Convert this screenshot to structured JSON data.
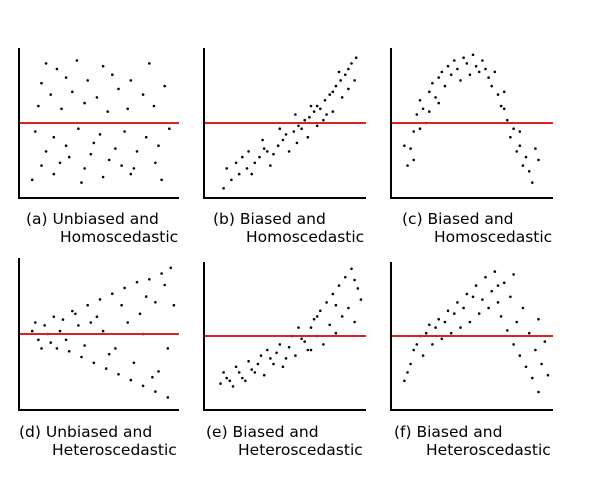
{
  "colors": {
    "background": "#ffffff",
    "axis": "#000000",
    "points": "#000000",
    "reference_line": "#e0201c"
  },
  "chart_data": [
    {
      "type": "scatter",
      "caption": [
        "(a) Unbiased and",
        "Homoscedastic"
      ],
      "grid": false,
      "xlim": [
        0,
        100
      ],
      "ylim": [
        0,
        100
      ],
      "reference_line_y": 50,
      "points": [
        [
          15,
          92
        ],
        [
          22,
          88
        ],
        [
          35,
          94
        ],
        [
          52,
          90
        ],
        [
          82,
          92
        ],
        [
          12,
          78
        ],
        [
          28,
          82
        ],
        [
          42,
          80
        ],
        [
          58,
          84
        ],
        [
          70,
          80
        ],
        [
          18,
          70
        ],
        [
          32,
          72
        ],
        [
          48,
          68
        ],
        [
          62,
          74
        ],
        [
          78,
          70
        ],
        [
          92,
          76
        ],
        [
          10,
          62
        ],
        [
          25,
          60
        ],
        [
          40,
          64
        ],
        [
          55,
          58
        ],
        [
          68,
          60
        ],
        [
          85,
          62
        ],
        [
          8,
          44
        ],
        [
          20,
          40
        ],
        [
          36,
          46
        ],
        [
          50,
          42
        ],
        [
          66,
          44
        ],
        [
          80,
          40
        ],
        [
          95,
          46
        ],
        [
          15,
          30
        ],
        [
          28,
          34
        ],
        [
          44,
          28
        ],
        [
          60,
          32
        ],
        [
          74,
          30
        ],
        [
          88,
          34
        ],
        [
          12,
          20
        ],
        [
          24,
          22
        ],
        [
          40,
          18
        ],
        [
          56,
          24
        ],
        [
          72,
          18
        ],
        [
          86,
          22
        ],
        [
          6,
          10
        ],
        [
          20,
          14
        ],
        [
          38,
          8
        ],
        [
          52,
          12
        ],
        [
          70,
          14
        ],
        [
          90,
          10
        ],
        [
          30,
          26
        ],
        [
          64,
          20
        ],
        [
          46,
          36
        ]
      ]
    },
    {
      "type": "scatter",
      "caption": [
        "(b) Biased and",
        "Homoscedastic"
      ],
      "grid": false,
      "xlim": [
        0,
        100
      ],
      "ylim": [
        0,
        100
      ],
      "reference_line_y": 50,
      "points": [
        [
          10,
          4
        ],
        [
          15,
          10
        ],
        [
          20,
          14
        ],
        [
          25,
          18
        ],
        [
          30,
          22
        ],
        [
          33,
          26
        ],
        [
          38,
          30
        ],
        [
          42,
          28
        ],
        [
          45,
          34
        ],
        [
          48,
          38
        ],
        [
          50,
          42
        ],
        [
          55,
          44
        ],
        [
          58,
          48
        ],
        [
          60,
          46
        ],
        [
          62,
          52
        ],
        [
          65,
          54
        ],
        [
          68,
          58
        ],
        [
          70,
          62
        ],
        [
          72,
          60
        ],
        [
          75,
          66
        ],
        [
          78,
          70
        ],
        [
          80,
          72
        ],
        [
          82,
          76
        ],
        [
          85,
          80
        ],
        [
          88,
          84
        ],
        [
          90,
          88
        ],
        [
          92,
          92
        ],
        [
          95,
          96
        ],
        [
          12,
          18
        ],
        [
          22,
          26
        ],
        [
          28,
          14
        ],
        [
          35,
          38
        ],
        [
          40,
          20
        ],
        [
          52,
          30
        ],
        [
          57,
          36
        ],
        [
          64,
          40
        ],
        [
          70,
          48
        ],
        [
          74,
          52
        ],
        [
          80,
          58
        ],
        [
          86,
          68
        ],
        [
          90,
          74
        ],
        [
          94,
          80
        ],
        [
          18,
          22
        ],
        [
          26,
          30
        ],
        [
          36,
          32
        ],
        [
          46,
          46
        ],
        [
          56,
          56
        ],
        [
          66,
          62
        ],
        [
          76,
          56
        ],
        [
          84,
          86
        ]
      ]
    },
    {
      "type": "scatter",
      "caption": [
        "(c) Biased and",
        "Homoscedastic"
      ],
      "grid": false,
      "xlim": [
        0,
        100
      ],
      "ylim": [
        0,
        100
      ],
      "reference_line_y": 50,
      "points": [
        [
          8,
          20
        ],
        [
          10,
          32
        ],
        [
          12,
          44
        ],
        [
          14,
          56
        ],
        [
          16,
          66
        ],
        [
          18,
          60
        ],
        [
          20,
          50
        ],
        [
          22,
          72
        ],
        [
          24,
          78
        ],
        [
          26,
          68
        ],
        [
          28,
          82
        ],
        [
          30,
          86
        ],
        [
          32,
          76
        ],
        [
          34,
          90
        ],
        [
          36,
          84
        ],
        [
          38,
          94
        ],
        [
          40,
          88
        ],
        [
          42,
          80
        ],
        [
          44,
          96
        ],
        [
          46,
          92
        ],
        [
          48,
          84
        ],
        [
          50,
          98
        ],
        [
          52,
          90
        ],
        [
          54,
          86
        ],
        [
          56,
          94
        ],
        [
          58,
          88
        ],
        [
          60,
          82
        ],
        [
          62,
          76
        ],
        [
          64,
          86
        ],
        [
          66,
          70
        ],
        [
          68,
          62
        ],
        [
          70,
          72
        ],
        [
          72,
          52
        ],
        [
          74,
          40
        ],
        [
          76,
          46
        ],
        [
          78,
          30
        ],
        [
          80,
          34
        ],
        [
          82,
          20
        ],
        [
          84,
          26
        ],
        [
          86,
          16
        ],
        [
          88,
          8
        ],
        [
          90,
          32
        ],
        [
          92,
          24
        ],
        [
          6,
          34
        ],
        [
          12,
          24
        ],
        [
          16,
          46
        ],
        [
          22,
          58
        ],
        [
          28,
          64
        ],
        [
          70,
          60
        ],
        [
          80,
          44
        ]
      ]
    },
    {
      "type": "scatter",
      "caption": [
        "(d) Unbiased and",
        "Heteroscedastic"
      ],
      "grid": false,
      "xlim": [
        0,
        100
      ],
      "ylim": [
        0,
        100
      ],
      "reference_line_y": 50,
      "points": [
        [
          6,
          52
        ],
        [
          10,
          46
        ],
        [
          14,
          56
        ],
        [
          18,
          44
        ],
        [
          22,
          40
        ],
        [
          26,
          60
        ],
        [
          30,
          38
        ],
        [
          34,
          64
        ],
        [
          38,
          34
        ],
        [
          42,
          70
        ],
        [
          46,
          30
        ],
        [
          50,
          74
        ],
        [
          54,
          26
        ],
        [
          58,
          78
        ],
        [
          62,
          22
        ],
        [
          66,
          82
        ],
        [
          70,
          18
        ],
        [
          74,
          86
        ],
        [
          78,
          14
        ],
        [
          82,
          88
        ],
        [
          86,
          10
        ],
        [
          90,
          92
        ],
        [
          94,
          6
        ],
        [
          96,
          96
        ],
        [
          8,
          58
        ],
        [
          16,
          50
        ],
        [
          24,
          52
        ],
        [
          32,
          66
        ],
        [
          40,
          42
        ],
        [
          48,
          62
        ],
        [
          56,
          36
        ],
        [
          64,
          70
        ],
        [
          72,
          30
        ],
        [
          80,
          76
        ],
        [
          88,
          24
        ],
        [
          92,
          84
        ],
        [
          12,
          40
        ],
        [
          28,
          46
        ],
        [
          44,
          58
        ],
        [
          60,
          40
        ],
        [
          76,
          64
        ],
        [
          84,
          20
        ],
        [
          68,
          58
        ],
        [
          52,
          52
        ],
        [
          36,
          56
        ],
        [
          20,
          62
        ],
        [
          98,
          70
        ],
        [
          94,
          40
        ],
        [
          86,
          72
        ],
        [
          78,
          50
        ]
      ]
    },
    {
      "type": "scatter",
      "caption": [
        "(e) Biased and",
        "Heteroscedastic"
      ],
      "grid": false,
      "xlim": [
        0,
        100
      ],
      "ylim": [
        0,
        100
      ],
      "reference_line_y": 50,
      "points": [
        [
          8,
          16
        ],
        [
          12,
          20
        ],
        [
          16,
          14
        ],
        [
          20,
          24
        ],
        [
          24,
          18
        ],
        [
          28,
          26
        ],
        [
          32,
          30
        ],
        [
          36,
          22
        ],
        [
          40,
          34
        ],
        [
          44,
          38
        ],
        [
          48,
          28
        ],
        [
          52,
          42
        ],
        [
          56,
          36
        ],
        [
          60,
          48
        ],
        [
          64,
          40
        ],
        [
          66,
          56
        ],
        [
          68,
          62
        ],
        [
          70,
          50
        ],
        [
          72,
          68
        ],
        [
          74,
          44
        ],
        [
          76,
          74
        ],
        [
          78,
          58
        ],
        [
          80,
          80
        ],
        [
          82,
          52
        ],
        [
          84,
          86
        ],
        [
          86,
          64
        ],
        [
          88,
          92
        ],
        [
          90,
          70
        ],
        [
          92,
          98
        ],
        [
          94,
          60
        ],
        [
          96,
          84
        ],
        [
          98,
          76
        ],
        [
          10,
          24
        ],
        [
          14,
          18
        ],
        [
          18,
          28
        ],
        [
          22,
          20
        ],
        [
          26,
          32
        ],
        [
          30,
          24
        ],
        [
          34,
          36
        ],
        [
          38,
          40
        ],
        [
          42,
          30
        ],
        [
          46,
          44
        ],
        [
          50,
          34
        ],
        [
          54,
          50
        ],
        [
          58,
          56
        ],
        [
          62,
          46
        ],
        [
          66,
          40
        ],
        [
          70,
          64
        ],
        [
          82,
          72
        ],
        [
          94,
          90
        ]
      ]
    },
    {
      "type": "scatter",
      "caption": [
        "(f) Biased and",
        "Heteroscedastic"
      ],
      "grid": false,
      "xlim": [
        0,
        100
      ],
      "ylim": [
        0,
        100
      ],
      "reference_line_y": 50,
      "points": [
        [
          6,
          18
        ],
        [
          10,
          30
        ],
        [
          12,
          40
        ],
        [
          16,
          50
        ],
        [
          18,
          36
        ],
        [
          22,
          58
        ],
        [
          24,
          44
        ],
        [
          28,
          62
        ],
        [
          30,
          48
        ],
        [
          34,
          68
        ],
        [
          36,
          52
        ],
        [
          40,
          74
        ],
        [
          42,
          56
        ],
        [
          46,
          80
        ],
        [
          48,
          60
        ],
        [
          52,
          86
        ],
        [
          54,
          66
        ],
        [
          56,
          76
        ],
        [
          58,
          92
        ],
        [
          60,
          70
        ],
        [
          62,
          82
        ],
        [
          64,
          96
        ],
        [
          66,
          74
        ],
        [
          68,
          64
        ],
        [
          70,
          88
        ],
        [
          72,
          54
        ],
        [
          74,
          78
        ],
        [
          76,
          44
        ],
        [
          78,
          60
        ],
        [
          80,
          36
        ],
        [
          82,
          70
        ],
        [
          84,
          28
        ],
        [
          86,
          52
        ],
        [
          88,
          20
        ],
        [
          90,
          40
        ],
        [
          92,
          10
        ],
        [
          94,
          30
        ],
        [
          96,
          46
        ],
        [
          98,
          22
        ],
        [
          8,
          24
        ],
        [
          14,
          44
        ],
        [
          20,
          52
        ],
        [
          26,
          56
        ],
        [
          32,
          60
        ],
        [
          38,
          66
        ],
        [
          44,
          70
        ],
        [
          50,
          78
        ],
        [
          66,
          86
        ],
        [
          76,
          94
        ],
        [
          92,
          62
        ]
      ]
    }
  ]
}
